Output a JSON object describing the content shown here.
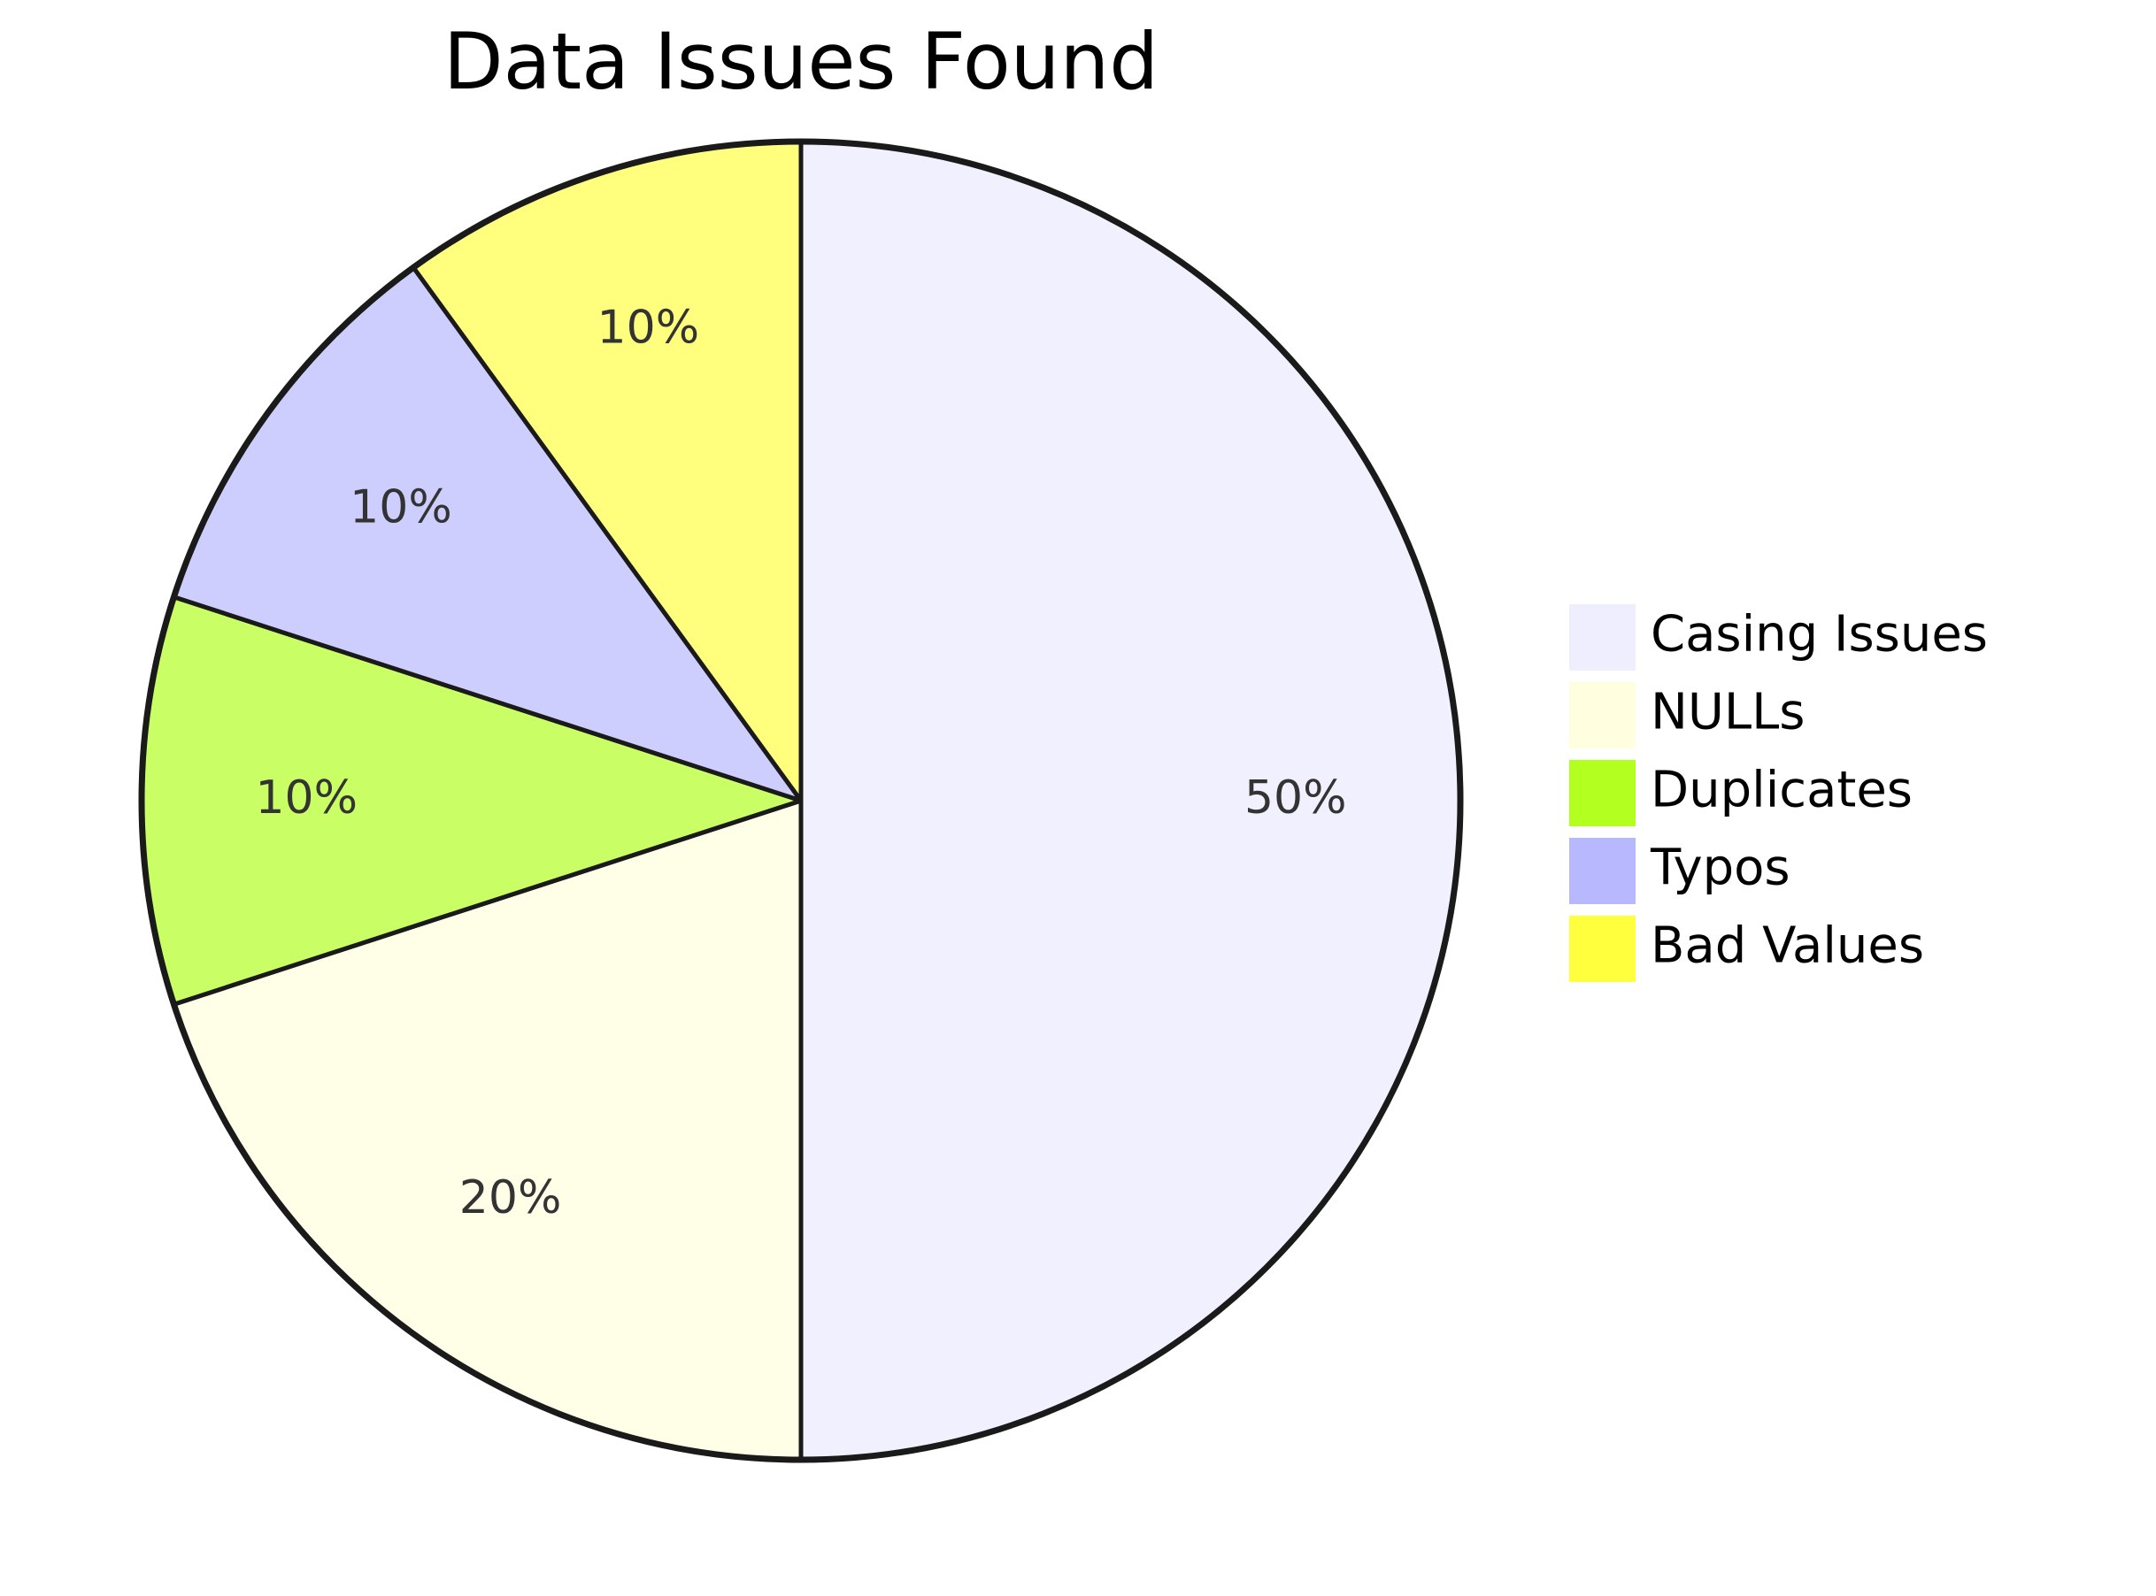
{
  "chart_data": {
    "type": "pie",
    "title": "Data Issues Found",
    "slices": [
      {
        "label": "Casing Issues",
        "value": 50,
        "display": "50%",
        "color": "#f0f0ff"
      },
      {
        "label": "NULLs",
        "value": 20,
        "display": "20%",
        "color": "#ffffe8"
      },
      {
        "label": "Duplicates",
        "value": 10,
        "display": "10%",
        "color": "#c9ff64"
      },
      {
        "label": "Typos",
        "value": 10,
        "display": "10%",
        "color": "#cecefe"
      },
      {
        "label": "Bad Values",
        "value": 10,
        "display": "10%",
        "color": "#ffff7d"
      }
    ],
    "legend": {
      "placement": "right",
      "items": [
        {
          "label": "Casing Issues",
          "color": "#eeeeff"
        },
        {
          "label": "NULLs",
          "color": "#ffffe0"
        },
        {
          "label": "Duplicates",
          "color": "#b3ff1f"
        },
        {
          "label": "Typos",
          "color": "#b8b8ff"
        },
        {
          "label": "Bad Values",
          "color": "#ffff3d"
        }
      ]
    },
    "colors": {
      "stroke": "#1a1a1a",
      "background": "#ffffff"
    }
  }
}
